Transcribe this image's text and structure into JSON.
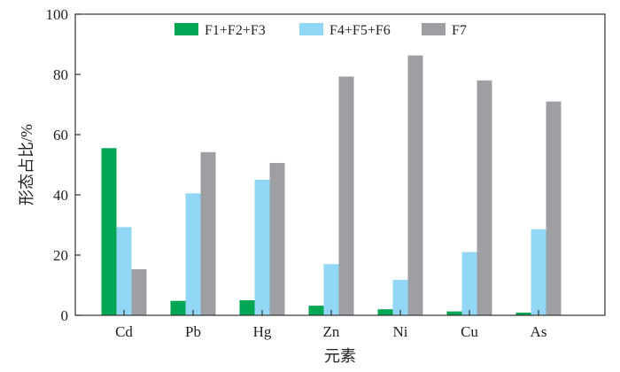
{
  "chart_data": {
    "type": "bar",
    "categories": [
      "Cd",
      "Pb",
      "Hg",
      "Zn",
      "Ni",
      "Cu",
      "As"
    ],
    "series": [
      {
        "name": "F1+F2+F3",
        "color": "#00a651",
        "values": [
          55.5,
          4.8,
          5.0,
          3.2,
          2.0,
          1.3,
          0.9
        ]
      },
      {
        "name": "F4+F5+F6",
        "color": "#92d7f5",
        "values": [
          29.3,
          40.5,
          45.0,
          17.0,
          11.8,
          21.0,
          28.6
        ]
      },
      {
        "name": "F7",
        "color": "#9e9fa3",
        "values": [
          15.3,
          54.2,
          50.6,
          79.3,
          86.3,
          78.0,
          71.0
        ]
      }
    ],
    "ylabel": "形态占比/%",
    "xlabel": "元素",
    "ylim": [
      0,
      100
    ],
    "yticks": [
      0,
      20,
      40,
      60,
      80,
      100
    ],
    "grid": false,
    "legend_position": "top"
  }
}
